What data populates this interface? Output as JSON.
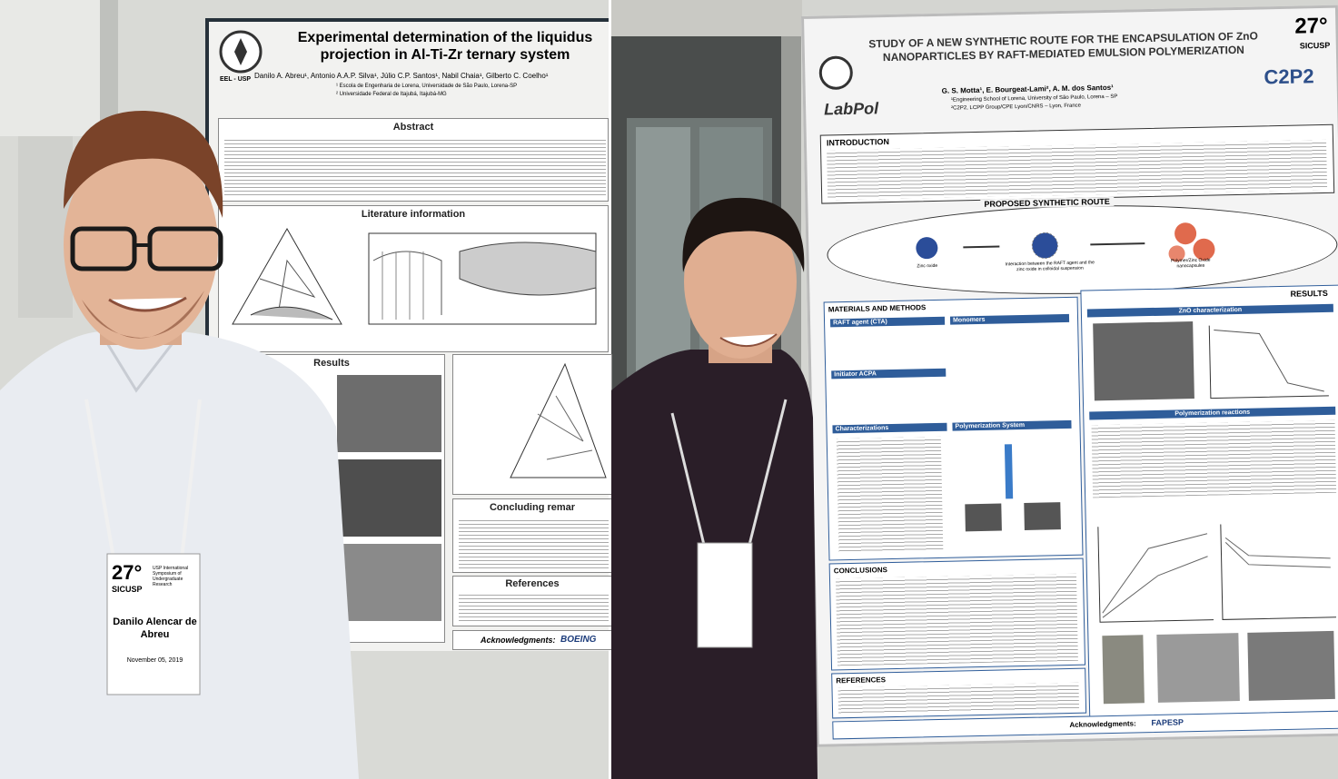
{
  "left_photo": {
    "poster": {
      "logo_label": "EEL - USP",
      "title": "Experimental determination of the liquidus projection in Al-Ti-Zr ternary system",
      "authors": "Danilo A. Abreu¹, Antonio A.A.P. Silva¹, Júlio C.P. Santos¹, Nabil Chaia¹, Gilberto C. Coelho¹",
      "affiliations": [
        "¹ Escola de Engenharia de Lorena, Universidade de São Paulo, Lorena-SP",
        "² Universidade Federal de Itajubá, Itajubá-MG"
      ],
      "sections": {
        "abstract": "Abstract",
        "literature": "Literature information",
        "results": "Results",
        "conclusions": "Concluding remar",
        "references": "References"
      },
      "acknowledgments": "Acknowledgments:",
      "sponsor": "BOEING"
    },
    "badge": {
      "edition": "27°",
      "event": "SICUSP",
      "event_full": "USP International Symposium of Undergraduate Research",
      "name": "Danilo Alencar de Abreu",
      "date": "November 05, 2019"
    }
  },
  "right_photo": {
    "poster": {
      "title": "STUDY OF A NEW SYNTHETIC ROUTE FOR THE ENCAPSULATION OF ZnO NANOPARTICLES BY RAFT-MEDIATED EMULSION POLYMERIZATION",
      "edition": "27°",
      "event": "SICUSP",
      "lab_logo": "LabPol",
      "partner_logo": "C2P2",
      "authors": "G. S. Motta¹, E. Bourgeat-Lami², A. M. dos Santos¹",
      "affiliations": [
        "¹Engineering School of Lorena, University of São Paulo, Lorena – SP",
        "²C2P2, LCPP Group/CPE Lyon/CNRS – Lyon, France"
      ],
      "sections": {
        "introduction": "INTRODUCTION",
        "route": "PROPOSED SYNTHETIC ROUTE",
        "methods": "MATERIALS AND METHODS",
        "results": "RESULTS",
        "conclusions": "CONCLUSIONS",
        "references": "REFERENCES"
      },
      "route_labels": [
        "Zinc oxide",
        "Interaction between the RAFT agent and the zinc oxide in colloidal suspension",
        "Polymer/Zinc Oxide nanocapsules"
      ],
      "method_headings": [
        "RAFT agent (CTA)",
        "Monomers",
        "Initiator ACPA",
        "Characterizations",
        "Polymerization System"
      ],
      "result_headings": [
        "ZnO characterization",
        "Polymerization reactions"
      ],
      "acknowledgments": "Acknowledgments:",
      "sponsor": "FAPESP"
    }
  }
}
